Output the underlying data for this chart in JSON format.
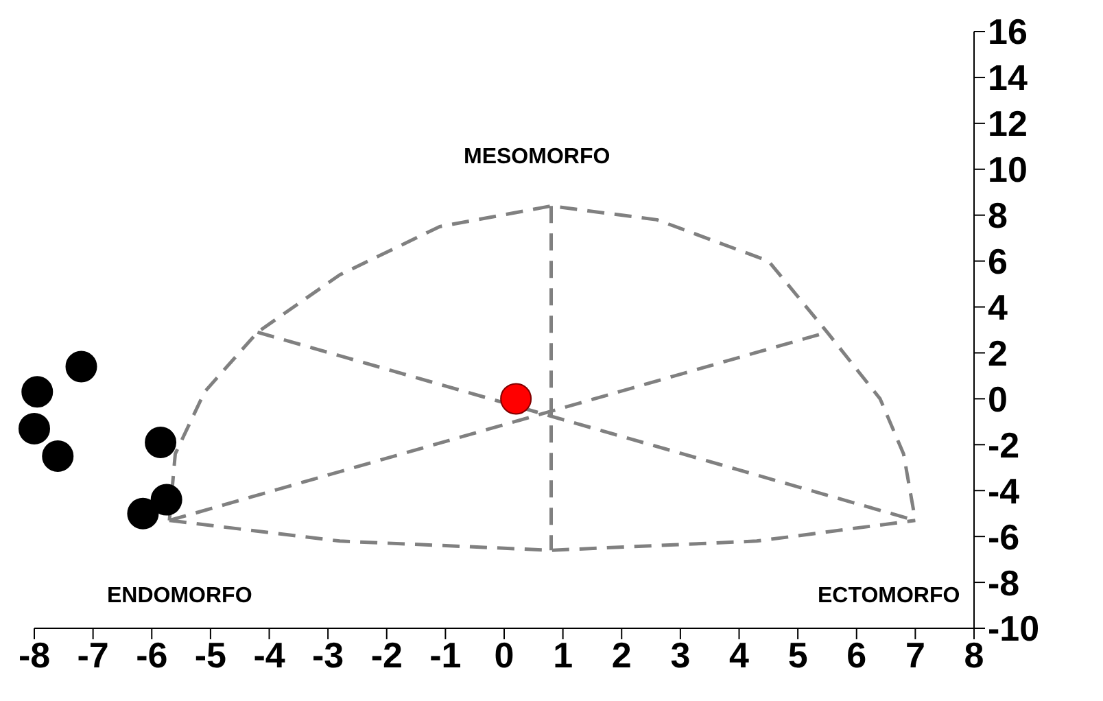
{
  "chart_data": {
    "type": "scatter",
    "xlim": [
      -8,
      8
    ],
    "xticks": [
      -8,
      -7,
      -6,
      -5,
      -4,
      -3,
      -2,
      -1,
      0,
      1,
      2,
      3,
      4,
      5,
      6,
      7,
      8
    ],
    "ylim": [
      -10,
      16
    ],
    "yticks": [
      -10,
      -8,
      -6,
      -4,
      -2,
      0,
      2,
      4,
      6,
      8,
      10,
      12,
      14,
      16
    ],
    "grid": false,
    "legend": false,
    "annotations": [
      "MESOMORFO",
      "ENDOMORFO",
      "ECTOMORFO"
    ],
    "series": [
      {
        "type": "line",
        "color": "#808080",
        "line_style": "dashed",
        "marker": "none",
        "x": [
          -5.7,
          -5.6,
          -5.1,
          -4.2,
          -2.8,
          -1.1,
          0.8,
          2.6,
          4.5,
          5.5,
          6.4,
          6.8,
          7.0
        ],
        "values": [
          -5.3,
          -2.4,
          0.3,
          2.9,
          5.4,
          7.5,
          8.4,
          7.8,
          6.0,
          2.9,
          0.0,
          -2.4,
          -5.3
        ]
      },
      {
        "type": "line",
        "color": "#808080",
        "line_style": "dashed",
        "marker": "none",
        "x": [
          -5.7,
          -2.8,
          0.8,
          4.3,
          7.0
        ],
        "values": [
          -5.3,
          -6.2,
          -6.6,
          -6.2,
          -5.3
        ]
      },
      {
        "type": "line",
        "color": "#808080",
        "line_style": "dashed",
        "marker": "none",
        "x": [
          0.8,
          0.8
        ],
        "values": [
          8.4,
          -6.6
        ]
      },
      {
        "type": "line",
        "color": "#808080",
        "line_style": "dashed",
        "marker": "none",
        "x": [
          -4.2,
          7.0
        ],
        "values": [
          2.9,
          -5.3
        ]
      },
      {
        "type": "line",
        "color": "#808080",
        "line_style": "dashed",
        "marker": "none",
        "x": [
          -5.7,
          5.5
        ],
        "values": [
          -5.3,
          2.9
        ]
      },
      {
        "color": "#000000",
        "marker": "circle",
        "x": [
          -7.95,
          -7.2,
          -8.0,
          -7.6,
          -5.85,
          -5.75,
          -6.15
        ],
        "values": [
          0.3,
          1.4,
          -1.3,
          -2.5,
          -1.9,
          -4.4,
          -5.0
        ]
      },
      {
        "color": "#ff0000",
        "marker": "circle",
        "x": [
          0.2
        ],
        "values": [
          0.0
        ]
      }
    ]
  }
}
